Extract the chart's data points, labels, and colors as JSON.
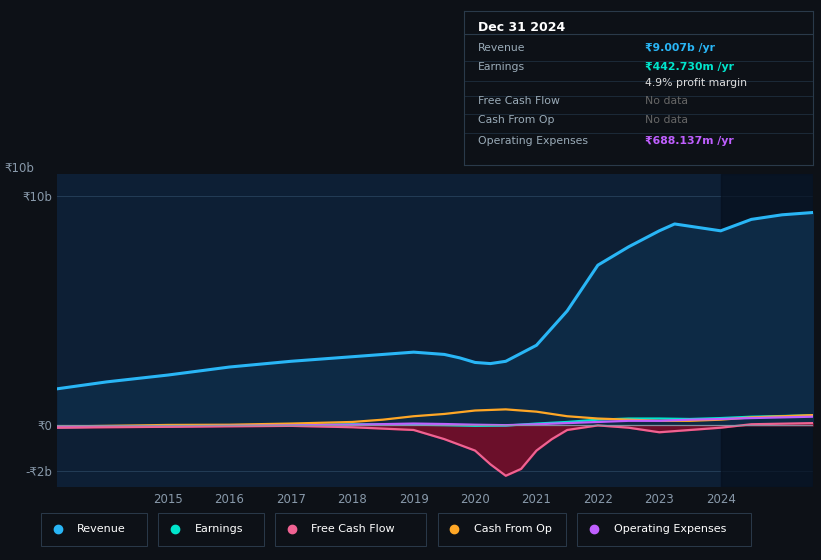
{
  "bg_color": "#0d1117",
  "plot_bg_color": "#0d1f35",
  "grid_color": "#263f5a",
  "title_text": "Dec 31 2024",
  "xlim": [
    2013.2,
    2025.5
  ],
  "ylim": [
    -2700000000,
    11000000000
  ],
  "yticks": [
    -2000000000,
    0,
    10000000000
  ],
  "ytick_labels": [
    "-₹2b",
    "₹0",
    "₹10b"
  ],
  "xtick_years": [
    2015,
    2016,
    2017,
    2018,
    2019,
    2020,
    2021,
    2022,
    2023,
    2024
  ],
  "revenue": {
    "color": "#29b6f6",
    "fill_color": "#0d2a45",
    "label": "Revenue",
    "x": [
      2013.2,
      2014.0,
      2015.0,
      2016.0,
      2017.0,
      2018.0,
      2018.5,
      2019.0,
      2019.5,
      2019.75,
      2020.0,
      2020.25,
      2020.5,
      2021.0,
      2021.5,
      2022.0,
      2022.5,
      2023.0,
      2023.25,
      2023.5,
      2024.0,
      2024.5,
      2025.0,
      2025.5
    ],
    "y": [
      1600000000,
      1900000000,
      2200000000,
      2550000000,
      2800000000,
      3000000000,
      3100000000,
      3200000000,
      3100000000,
      2950000000,
      2750000000,
      2700000000,
      2800000000,
      3500000000,
      5000000000,
      7000000000,
      7800000000,
      8500000000,
      8800000000,
      8700000000,
      8500000000,
      9000000000,
      9200000000,
      9300000000
    ]
  },
  "earnings": {
    "color": "#00e5cc",
    "label": "Earnings",
    "x": [
      2013.2,
      2014.0,
      2015.0,
      2016.0,
      2017.0,
      2018.0,
      2019.0,
      2019.5,
      2020.0,
      2020.5,
      2021.0,
      2021.5,
      2022.0,
      2022.5,
      2023.0,
      2023.5,
      2024.0,
      2024.5,
      2025.5
    ],
    "y": [
      -80000000,
      -60000000,
      -30000000,
      -10000000,
      20000000,
      50000000,
      30000000,
      10000000,
      -20000000,
      -10000000,
      80000000,
      150000000,
      250000000,
      300000000,
      300000000,
      280000000,
      320000000,
      380000000,
      440000000
    ]
  },
  "free_cash_flow": {
    "color": "#f06292",
    "fill_color": "#6b0f2a",
    "label": "Free Cash Flow",
    "x": [
      2013.2,
      2014.0,
      2015.0,
      2016.0,
      2017.0,
      2018.0,
      2019.0,
      2019.5,
      2020.0,
      2020.25,
      2020.5,
      2020.75,
      2021.0,
      2021.25,
      2021.5,
      2022.0,
      2022.5,
      2023.0,
      2023.5,
      2024.0,
      2024.5,
      2025.5
    ],
    "y": [
      -100000000,
      -80000000,
      -60000000,
      -40000000,
      -20000000,
      -80000000,
      -200000000,
      -600000000,
      -1100000000,
      -1700000000,
      -2200000000,
      -1900000000,
      -1100000000,
      -600000000,
      -200000000,
      0,
      -100000000,
      -300000000,
      -200000000,
      -100000000,
      50000000,
      100000000
    ]
  },
  "cash_from_op": {
    "color": "#ffa726",
    "label": "Cash From Op",
    "x": [
      2013.2,
      2014.0,
      2015.0,
      2016.0,
      2017.0,
      2018.0,
      2018.5,
      2019.0,
      2019.5,
      2020.0,
      2020.5,
      2021.0,
      2021.25,
      2021.5,
      2022.0,
      2022.5,
      2023.0,
      2023.5,
      2024.0,
      2024.5,
      2025.5
    ],
    "y": [
      -50000000,
      -20000000,
      20000000,
      30000000,
      80000000,
      150000000,
      250000000,
      400000000,
      500000000,
      650000000,
      700000000,
      600000000,
      500000000,
      400000000,
      300000000,
      250000000,
      200000000,
      200000000,
      250000000,
      350000000,
      450000000
    ]
  },
  "operating_expenses": {
    "color": "#bf5fff",
    "label": "Operating Expenses",
    "x": [
      2013.2,
      2014.0,
      2015.0,
      2016.0,
      2017.0,
      2018.0,
      2019.0,
      2019.5,
      2020.0,
      2020.5,
      2021.0,
      2021.5,
      2022.0,
      2022.5,
      2023.0,
      2023.5,
      2024.0,
      2024.5,
      2025.5
    ],
    "y": [
      -80000000,
      -60000000,
      -40000000,
      -20000000,
      0,
      30000000,
      80000000,
      60000000,
      30000000,
      10000000,
      50000000,
      100000000,
      150000000,
      200000000,
      200000000,
      250000000,
      280000000,
      320000000,
      380000000
    ]
  },
  "legend_items": [
    {
      "label": "Revenue",
      "color": "#29b6f6"
    },
    {
      "label": "Earnings",
      "color": "#00e5cc"
    },
    {
      "label": "Free Cash Flow",
      "color": "#f06292"
    },
    {
      "label": "Cash From Op",
      "color": "#ffa726"
    },
    {
      "label": "Operating Expenses",
      "color": "#bf5fff"
    }
  ],
  "highlight_x_start": 2024.0,
  "info_box_rows": [
    {
      "label": "Revenue",
      "value": "₹9.007b /yr",
      "value_color": "#29b6f6",
      "bold_value": true
    },
    {
      "label": "Earnings",
      "value": "₹442.730m /yr",
      "value_color": "#00e5cc",
      "bold_value": true
    },
    {
      "label": "",
      "value": "4.9% profit margin",
      "value_color": "#dddddd",
      "bold_value": false
    },
    {
      "label": "Free Cash Flow",
      "value": "No data",
      "value_color": "#666666",
      "bold_value": false
    },
    {
      "label": "Cash From Op",
      "value": "No data",
      "value_color": "#666666",
      "bold_value": false
    },
    {
      "label": "Operating Expenses",
      "value": "₹688.137m /yr",
      "value_color": "#bf5fff",
      "bold_value": true
    }
  ]
}
